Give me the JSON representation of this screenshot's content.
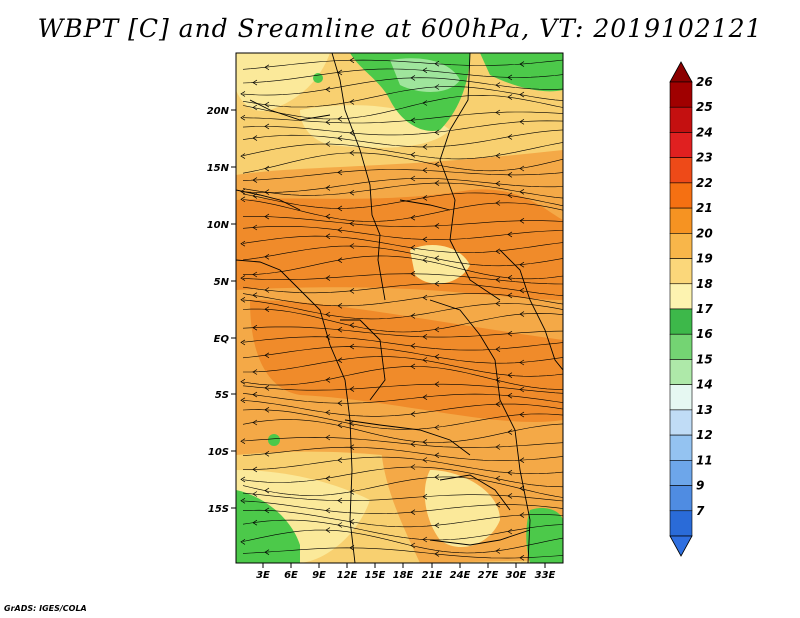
{
  "title": "WBPT [C] and Sreamline at 600hPa, VT: 2019102121",
  "credit": "GrADS: IGES/COLA",
  "map": {
    "lat_labels": [
      "20N",
      "15N",
      "10N",
      "5N",
      "EQ",
      "5S",
      "10S",
      "15S"
    ],
    "lon_labels": [
      "3E",
      "6E",
      "9E",
      "12E",
      "15E",
      "18E",
      "21E",
      "24E",
      "27E",
      "30E",
      "33E"
    ],
    "variable": "wet-bulb potential temperature",
    "streamline_direction": "east-to-west",
    "colors": {
      "c17": "#4cc94a",
      "c18": "#9fe59c",
      "c19": "#fbe99a",
      "c20": "#f8d070",
      "c21": "#f4a947",
      "c22": "#f08b2a",
      "lines": "#000000"
    }
  },
  "colorbar": {
    "labels": [
      "26",
      "25",
      "24",
      "23",
      "22",
      "21",
      "20",
      "19",
      "18",
      "17",
      "16",
      "15",
      "14",
      "13",
      "12",
      "11",
      "9",
      "7"
    ],
    "colors": [
      "#a00000",
      "#c41010",
      "#e02020",
      "#ee4a18",
      "#f57012",
      "#f69322",
      "#f8b64a",
      "#fbd77a",
      "#fdf3b0",
      "#3db84a",
      "#74d473",
      "#aee9a9",
      "#e6f8f2",
      "#c0dcf6",
      "#94c3f1",
      "#6da6ea",
      "#4f8ce2",
      "#2a6bd8"
    ],
    "top_arrow_color": "#8b0000",
    "bottom_arrow_color": "#2f6fe0"
  }
}
